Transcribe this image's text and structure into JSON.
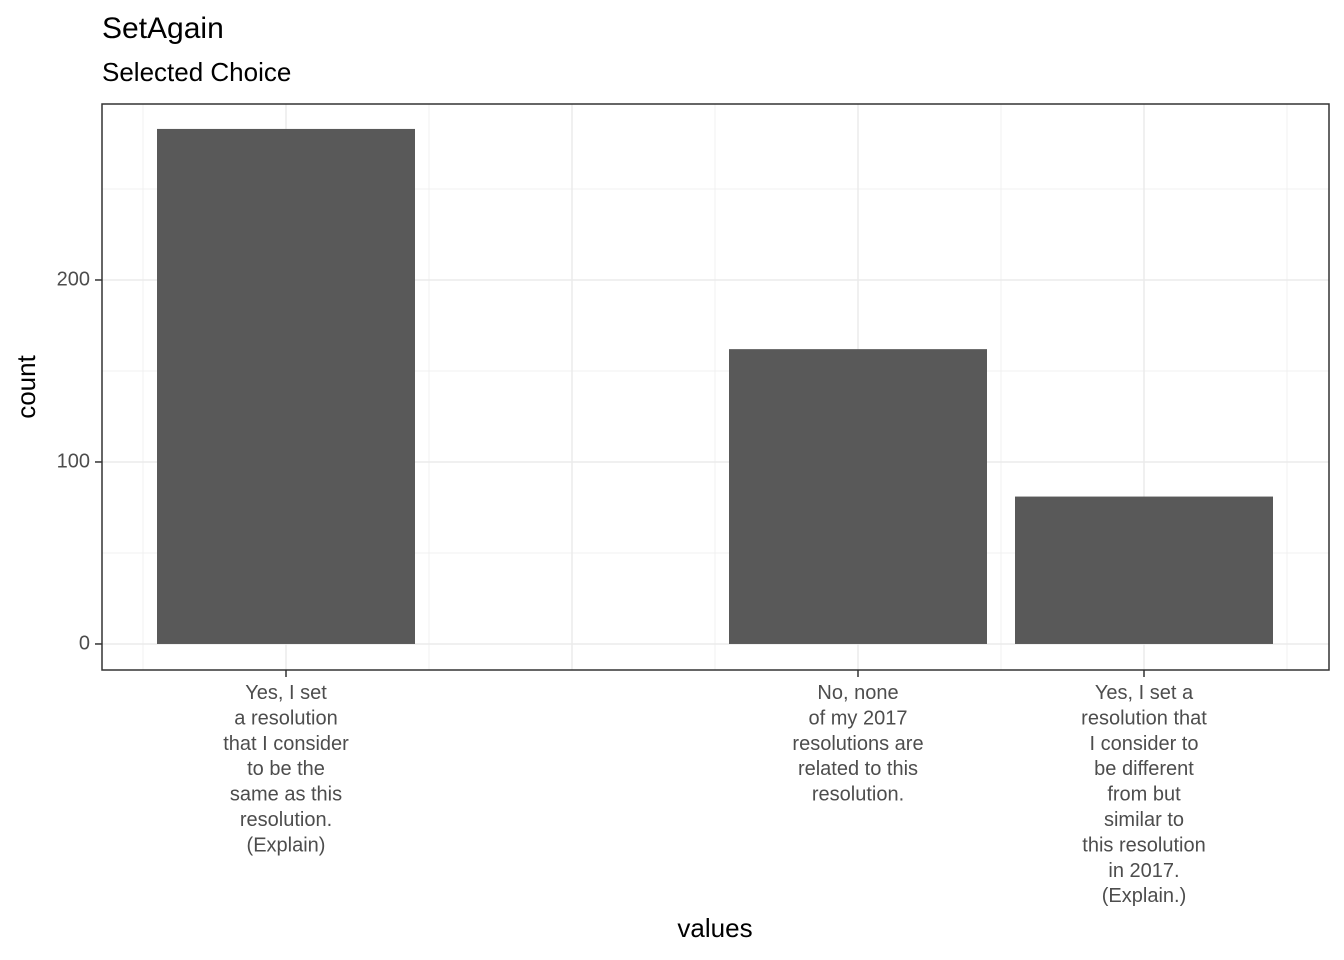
{
  "chart_data": {
    "type": "bar",
    "title": "SetAgain",
    "subtitle": "Selected Choice",
    "x_label": "values",
    "y_label": "count",
    "categories": [
      "Yes, I set\na resolution\nthat I consider\nto be the\nsame as this\nresolution.\n(Explain)",
      null,
      "No, none\nof my 2017\nresolutions are\nrelated to this\nresolution.",
      "Yes, I set a\nresolution that\nI consider to\nbe different\nfrom but\nsimilar to\nthis resolution\nin 2017.\n(Explain.)"
    ],
    "values": [
      283,
      null,
      162,
      81
    ],
    "color": "#595959",
    "ylim": [
      -14.3,
      296.7
    ],
    "yticks": [
      0,
      100,
      200
    ],
    "grid": true
  }
}
